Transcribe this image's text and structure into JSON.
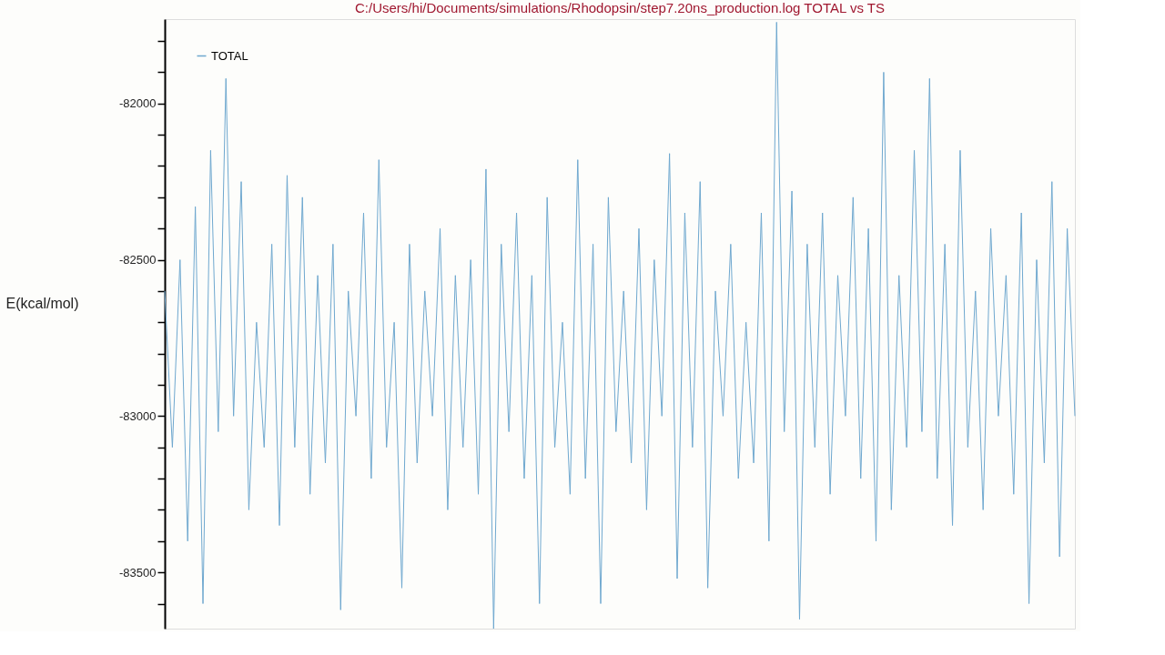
{
  "chart_data": {
    "type": "line",
    "title": "C:/Users/hi/Documents/simulations/Rhodopsin/step7.20ns_production.log TOTAL vs TS",
    "ylabel": "E(kcal/mol)",
    "categories": [
      null,
      null,
      null,
      null,
      null,
      null,
      null,
      null,
      null,
      null,
      null,
      null,
      null,
      null,
      null,
      null,
      null,
      null,
      null,
      null,
      null,
      null,
      null,
      null,
      null,
      null,
      null,
      null,
      null,
      null,
      null,
      null,
      null,
      null,
      null,
      null,
      null,
      null,
      null,
      null,
      null,
      null,
      null,
      null,
      null,
      null,
      null,
      null,
      null,
      null,
      null,
      null,
      null,
      null,
      null,
      null,
      null,
      null,
      null,
      null,
      null,
      null,
      null,
      null,
      null,
      null,
      null,
      null,
      null,
      null,
      null,
      null,
      null,
      null,
      null,
      null,
      null,
      null,
      null,
      null,
      null,
      null,
      null,
      null,
      null,
      null,
      null,
      null,
      null,
      null,
      null,
      null,
      null,
      null,
      null,
      null,
      null,
      null,
      null,
      null,
      null,
      null,
      null,
      null,
      null,
      null,
      null,
      null,
      null,
      null,
      null,
      null,
      null,
      null,
      null,
      null,
      null,
      null,
      null,
      null
    ],
    "series": [
      {
        "name": "TOTAL",
        "color": "#6fa8cf",
        "values": [
          -82600,
          -83100,
          -82500,
          -83400,
          -82330,
          -83600,
          -82150,
          -83050,
          -81920,
          -83000,
          -82250,
          -83300,
          -82700,
          -83100,
          -82450,
          -83350,
          -82230,
          -83100,
          -82300,
          -83250,
          -82550,
          -83150,
          -82450,
          -83620,
          -82600,
          -83000,
          -82350,
          -83200,
          -82180,
          -83100,
          -82700,
          -83550,
          -82450,
          -83150,
          -82600,
          -83000,
          -82400,
          -83300,
          -82550,
          -83100,
          -82500,
          -83250,
          -82210,
          -83680,
          -82450,
          -83050,
          -82350,
          -83200,
          -82550,
          -83600,
          -82300,
          -83100,
          -82700,
          -83250,
          -82180,
          -83200,
          -82450,
          -83600,
          -82300,
          -83050,
          -82600,
          -83150,
          -82400,
          -83300,
          -82500,
          -83000,
          -82160,
          -83520,
          -82350,
          -83100,
          -82250,
          -83550,
          -82600,
          -83000,
          -82450,
          -83200,
          -82700,
          -83150,
          -82350,
          -83400,
          -81740,
          -83050,
          -82280,
          -83650,
          -82450,
          -83100,
          -82350,
          -83250,
          -82550,
          -83000,
          -82300,
          -83200,
          -82400,
          -83400,
          -81900,
          -83300,
          -82550,
          -83100,
          -82150,
          -83050,
          -81920,
          -83200,
          -82450,
          -83350,
          -82150,
          -83100,
          -82600,
          -83300,
          -82400,
          -83000,
          -82550,
          -83250,
          -82350,
          -83600,
          -82500,
          -83150,
          -82250,
          -83450,
          -82400,
          -83000
        ]
      }
    ],
    "ylim": [
      -83680,
      -81730
    ],
    "yticks": [
      {
        "value": -83600,
        "label": null
      },
      -83500,
      {
        "value": -83400,
        "label": null
      },
      {
        "value": -83300,
        "label": null
      },
      {
        "value": -83200,
        "label": null
      },
      {
        "value": -83100,
        "label": null
      },
      -83000,
      {
        "value": -82900,
        "label": null
      },
      {
        "value": -82800,
        "label": null
      },
      {
        "value": -82700,
        "label": null
      },
      {
        "value": -82600,
        "label": null
      },
      -82500,
      {
        "value": -82400,
        "label": null
      },
      {
        "value": -82300,
        "label": null
      },
      {
        "value": -82200,
        "label": null
      },
      {
        "value": -82100,
        "label": null
      },
      -82000,
      {
        "value": -81900,
        "label": null
      },
      {
        "value": -81800,
        "label": null
      }
    ],
    "tick_labels": "y",
    "grid": false,
    "legend": "top left",
    "line_style": "solid",
    "marker": "none"
  }
}
